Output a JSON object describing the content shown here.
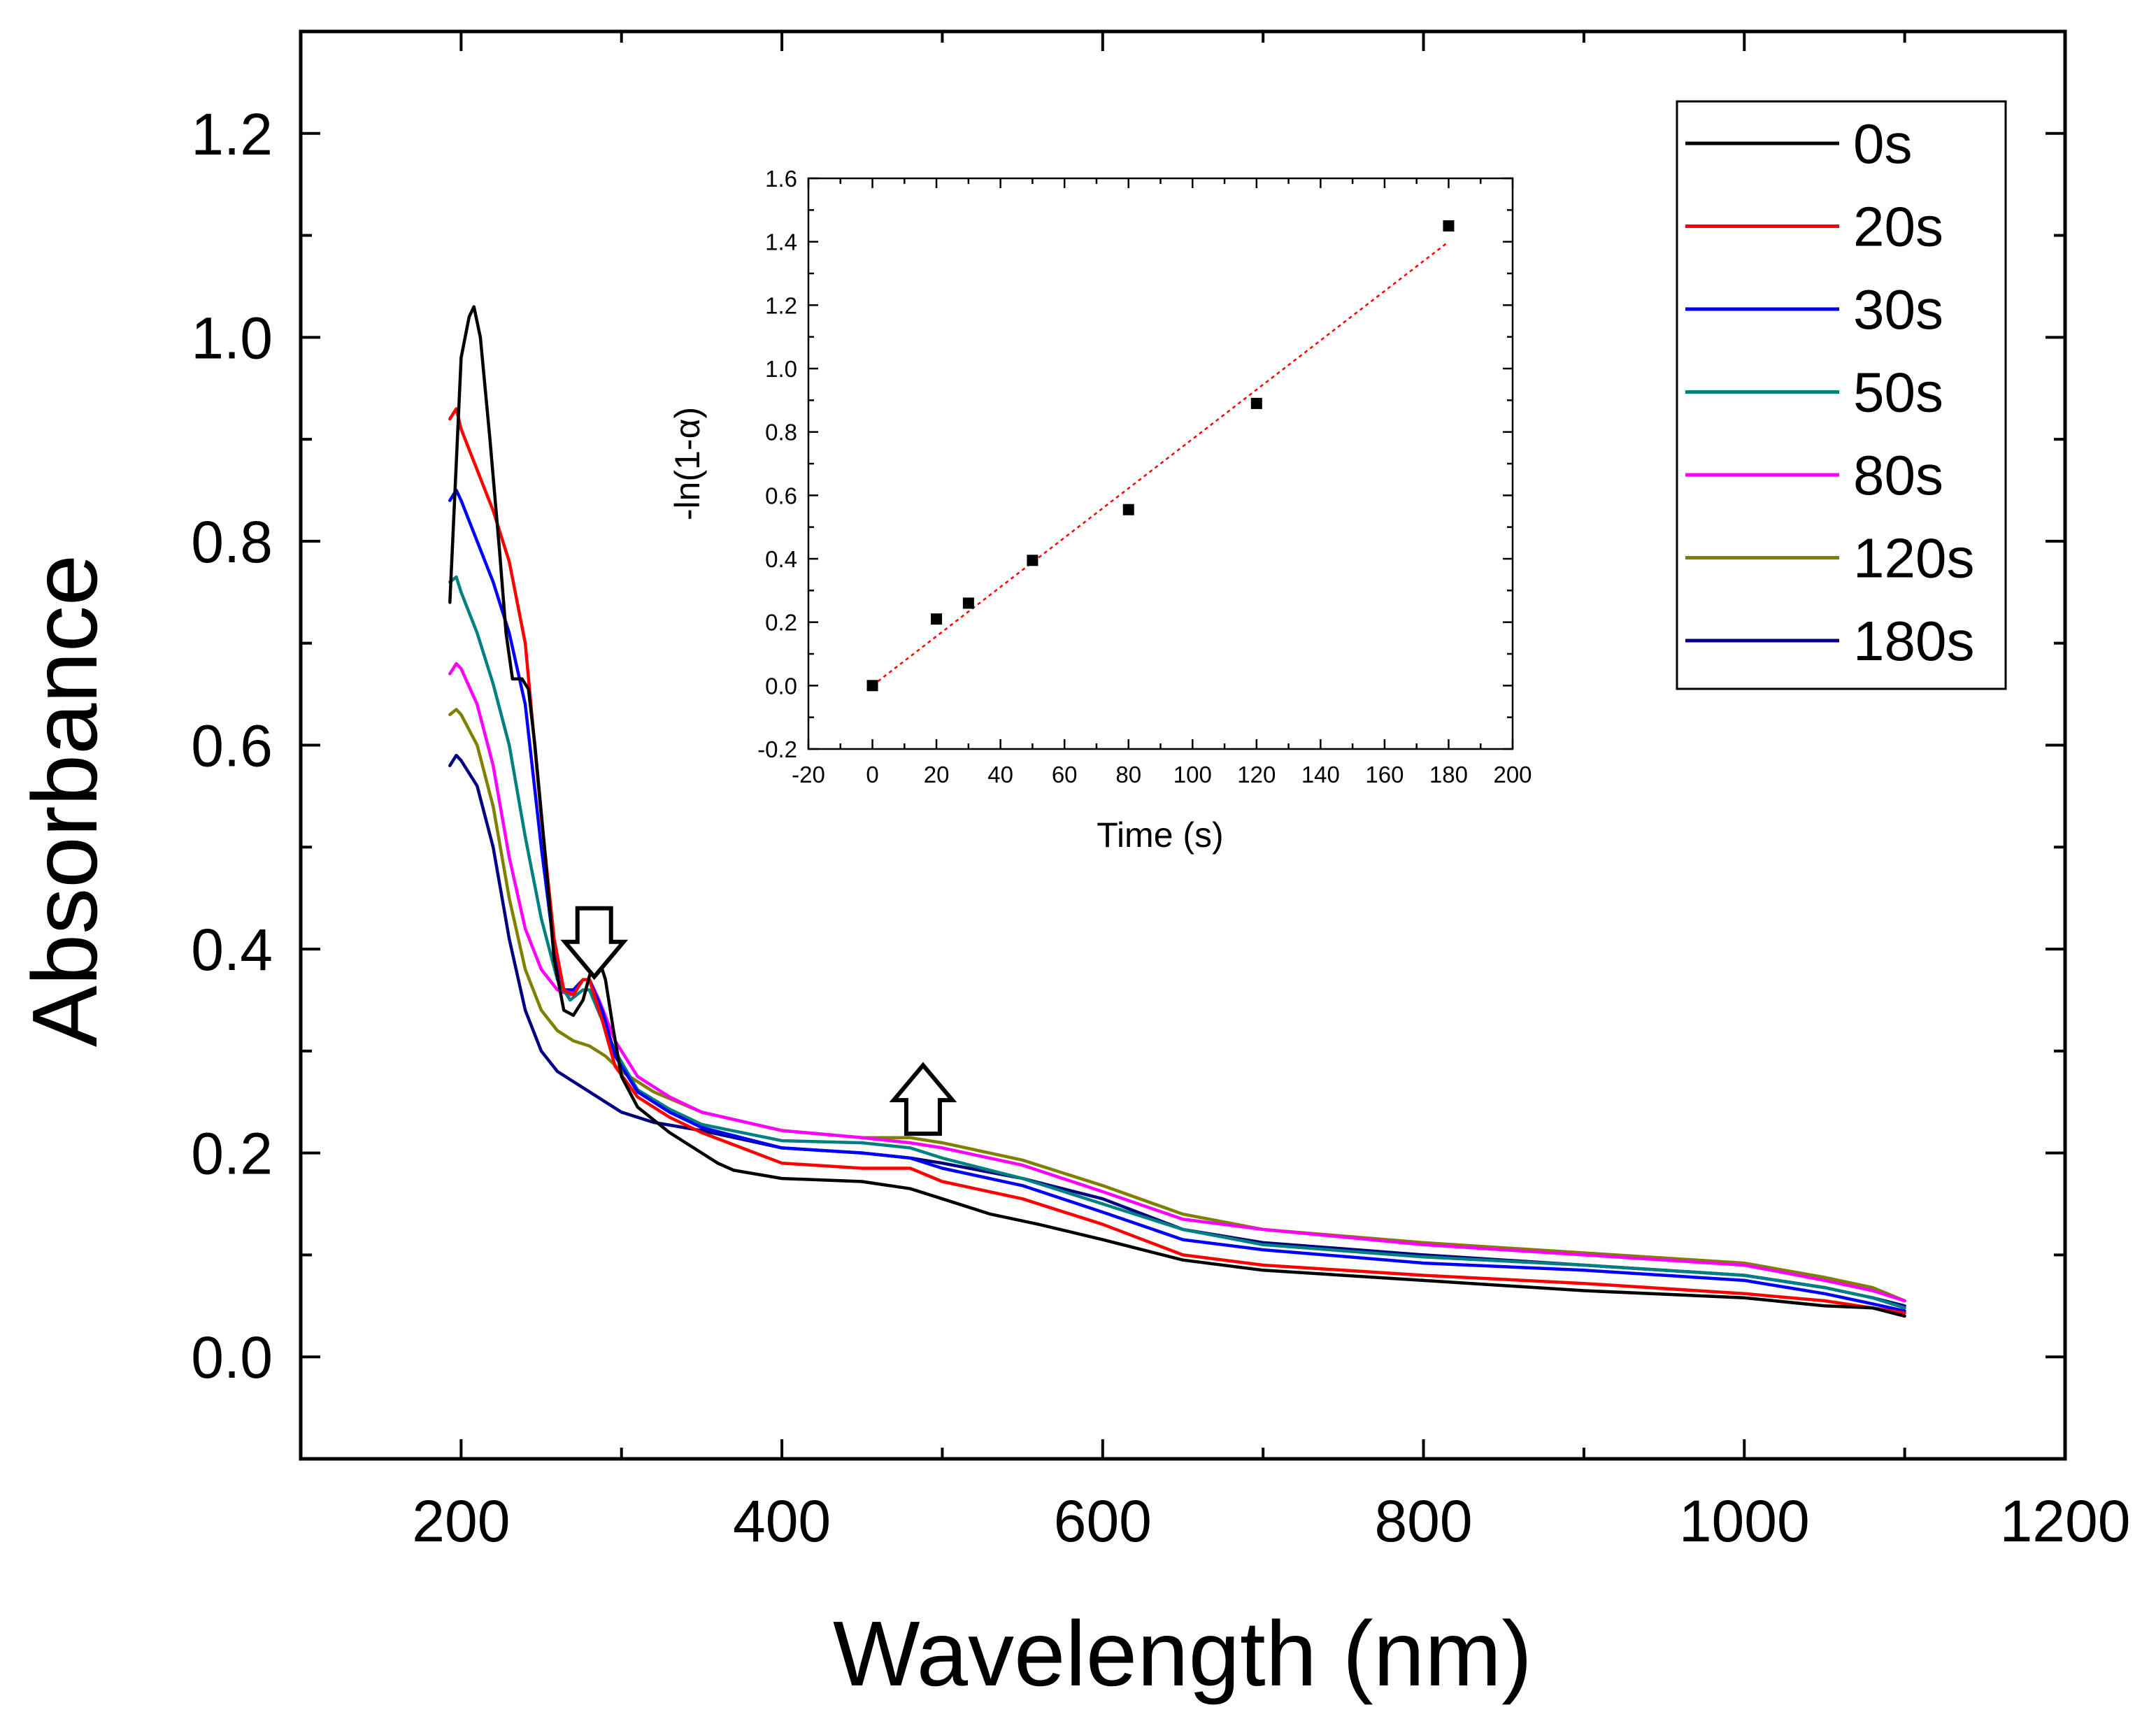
{
  "chart_data": [
    {
      "type": "line",
      "title": "",
      "xlabel": "Wavelength (nm)",
      "ylabel": "Absorbance",
      "xlim": [
        100,
        1200
      ],
      "ylim": [
        -0.1,
        1.3
      ],
      "x_ticks": [
        "200",
        "400",
        "600",
        "800",
        "1000",
        "1200"
      ],
      "y_ticks": [
        "0.0",
        "0.2",
        "0.4",
        "0.6",
        "0.8",
        "1.0",
        "1.2"
      ],
      "legend_position": "top-right",
      "annotations": [
        {
          "kind": "down-arrow",
          "label": "decrease",
          "x": 283,
          "y": 0.44
        },
        {
          "kind": "up-arrow",
          "label": "increase",
          "x": 488,
          "y": 0.26
        }
      ],
      "series": [
        {
          "name": "0s",
          "color": "#000000",
          "points": [
            [
              193,
              0.74
            ],
            [
              200,
              0.98
            ],
            [
              205,
              1.02
            ],
            [
              208,
              1.03
            ],
            [
              212,
              1.0
            ],
            [
              218,
              0.9
            ],
            [
              224,
              0.79
            ],
            [
              228,
              0.71
            ],
            [
              232,
              0.665
            ],
            [
              238,
              0.665
            ],
            [
              242,
              0.655
            ],
            [
              246,
              0.6
            ],
            [
              252,
              0.5
            ],
            [
              258,
              0.39
            ],
            [
              264,
              0.34
            ],
            [
              270,
              0.335
            ],
            [
              276,
              0.35
            ],
            [
              282,
              0.385
            ],
            [
              286,
              0.39
            ],
            [
              290,
              0.37
            ],
            [
              295,
              0.32
            ],
            [
              300,
              0.275
            ],
            [
              310,
              0.245
            ],
            [
              330,
              0.22
            ],
            [
              350,
              0.2
            ],
            [
              360,
              0.19
            ],
            [
              370,
              0.183
            ],
            [
              400,
              0.175
            ],
            [
              450,
              0.172
            ],
            [
              480,
              0.165
            ],
            [
              500,
              0.155
            ],
            [
              530,
              0.14
            ],
            [
              560,
              0.13
            ],
            [
              600,
              0.115
            ],
            [
              650,
              0.095
            ],
            [
              700,
              0.085
            ],
            [
              800,
              0.075
            ],
            [
              900,
              0.065
            ],
            [
              1000,
              0.058
            ],
            [
              1050,
              0.05
            ],
            [
              1080,
              0.048
            ],
            [
              1100,
              0.04
            ]
          ]
        },
        {
          "name": "20s",
          "color": "#ff0000",
          "points": [
            [
              193,
              0.92
            ],
            [
              197,
              0.93
            ],
            [
              200,
              0.91
            ],
            [
              210,
              0.87
            ],
            [
              220,
              0.83
            ],
            [
              230,
              0.78
            ],
            [
              240,
              0.7
            ],
            [
              250,
              0.53
            ],
            [
              258,
              0.41
            ],
            [
              264,
              0.36
            ],
            [
              270,
              0.355
            ],
            [
              276,
              0.37
            ],
            [
              280,
              0.37
            ],
            [
              288,
              0.33
            ],
            [
              296,
              0.285
            ],
            [
              310,
              0.255
            ],
            [
              330,
              0.235
            ],
            [
              350,
              0.22
            ],
            [
              400,
              0.19
            ],
            [
              450,
              0.185
            ],
            [
              480,
              0.185
            ],
            [
              500,
              0.172
            ],
            [
              550,
              0.155
            ],
            [
              600,
              0.13
            ],
            [
              650,
              0.1
            ],
            [
              700,
              0.09
            ],
            [
              800,
              0.08
            ],
            [
              900,
              0.072
            ],
            [
              1000,
              0.062
            ],
            [
              1050,
              0.055
            ],
            [
              1080,
              0.048
            ],
            [
              1100,
              0.043
            ]
          ]
        },
        {
          "name": "30s",
          "color": "#0000ff",
          "points": [
            [
              193,
              0.84
            ],
            [
              197,
              0.85
            ],
            [
              200,
              0.84
            ],
            [
              210,
              0.8
            ],
            [
              220,
              0.76
            ],
            [
              230,
              0.71
            ],
            [
              240,
              0.64
            ],
            [
              250,
              0.5
            ],
            [
              258,
              0.4
            ],
            [
              264,
              0.36
            ],
            [
              270,
              0.36
            ],
            [
              276,
              0.37
            ],
            [
              280,
              0.37
            ],
            [
              288,
              0.34
            ],
            [
              296,
              0.295
            ],
            [
              310,
              0.26
            ],
            [
              330,
              0.24
            ],
            [
              350,
              0.225
            ],
            [
              400,
              0.205
            ],
            [
              450,
              0.2
            ],
            [
              480,
              0.195
            ],
            [
              500,
              0.185
            ],
            [
              550,
              0.168
            ],
            [
              600,
              0.142
            ],
            [
              650,
              0.115
            ],
            [
              700,
              0.105
            ],
            [
              800,
              0.092
            ],
            [
              900,
              0.085
            ],
            [
              1000,
              0.075
            ],
            [
              1050,
              0.062
            ],
            [
              1080,
              0.052
            ],
            [
              1100,
              0.045
            ]
          ]
        },
        {
          "name": "50s",
          "color": "#008080",
          "points": [
            [
              193,
              0.76
            ],
            [
              197,
              0.765
            ],
            [
              200,
              0.75
            ],
            [
              210,
              0.71
            ],
            [
              220,
              0.66
            ],
            [
              230,
              0.6
            ],
            [
              240,
              0.51
            ],
            [
              250,
              0.43
            ],
            [
              260,
              0.37
            ],
            [
              268,
              0.35
            ],
            [
              276,
              0.36
            ],
            [
              280,
              0.36
            ],
            [
              288,
              0.33
            ],
            [
              296,
              0.3
            ],
            [
              310,
              0.262
            ],
            [
              330,
              0.243
            ],
            [
              350,
              0.228
            ],
            [
              400,
              0.212
            ],
            [
              450,
              0.21
            ],
            [
              480,
              0.205
            ],
            [
              500,
              0.195
            ],
            [
              550,
              0.175
            ],
            [
              600,
              0.15
            ],
            [
              650,
              0.125
            ],
            [
              700,
              0.11
            ],
            [
              800,
              0.098
            ],
            [
              900,
              0.09
            ],
            [
              1000,
              0.08
            ],
            [
              1050,
              0.068
            ],
            [
              1080,
              0.058
            ],
            [
              1100,
              0.048
            ]
          ]
        },
        {
          "name": "80s",
          "color": "#ff00ff",
          "points": [
            [
              193,
              0.67
            ],
            [
              197,
              0.68
            ],
            [
              200,
              0.675
            ],
            [
              210,
              0.64
            ],
            [
              220,
              0.58
            ],
            [
              230,
              0.49
            ],
            [
              240,
              0.42
            ],
            [
              250,
              0.38
            ],
            [
              260,
              0.36
            ],
            [
              268,
              0.355
            ],
            [
              276,
              0.37
            ],
            [
              280,
              0.37
            ],
            [
              286,
              0.35
            ],
            [
              296,
              0.31
            ],
            [
              310,
              0.275
            ],
            [
              330,
              0.255
            ],
            [
              350,
              0.24
            ],
            [
              400,
              0.222
            ],
            [
              450,
              0.215
            ],
            [
              480,
              0.21
            ],
            [
              500,
              0.205
            ],
            [
              550,
              0.188
            ],
            [
              600,
              0.162
            ],
            [
              650,
              0.135
            ],
            [
              700,
              0.125
            ],
            [
              800,
              0.11
            ],
            [
              900,
              0.1
            ],
            [
              1000,
              0.09
            ],
            [
              1050,
              0.075
            ],
            [
              1080,
              0.065
            ],
            [
              1100,
              0.055
            ]
          ]
        },
        {
          "name": "120s",
          "color": "#808000",
          "points": [
            [
              193,
              0.63
            ],
            [
              197,
              0.635
            ],
            [
              200,
              0.63
            ],
            [
              210,
              0.6
            ],
            [
              220,
              0.54
            ],
            [
              230,
              0.45
            ],
            [
              240,
              0.38
            ],
            [
              250,
              0.34
            ],
            [
              260,
              0.32
            ],
            [
              270,
              0.31
            ],
            [
              280,
              0.305
            ],
            [
              290,
              0.295
            ],
            [
              300,
              0.28
            ],
            [
              320,
              0.26
            ],
            [
              350,
              0.24
            ],
            [
              400,
              0.222
            ],
            [
              450,
              0.215
            ],
            [
              480,
              0.215
            ],
            [
              500,
              0.21
            ],
            [
              550,
              0.193
            ],
            [
              600,
              0.168
            ],
            [
              650,
              0.14
            ],
            [
              700,
              0.125
            ],
            [
              800,
              0.112
            ],
            [
              900,
              0.102
            ],
            [
              1000,
              0.092
            ],
            [
              1050,
              0.078
            ],
            [
              1080,
              0.068
            ],
            [
              1100,
              0.055
            ]
          ]
        },
        {
          "name": "180s",
          "color": "#000080",
          "points": [
            [
              193,
              0.58
            ],
            [
              197,
              0.59
            ],
            [
              200,
              0.585
            ],
            [
              210,
              0.56
            ],
            [
              220,
              0.5
            ],
            [
              230,
              0.41
            ],
            [
              240,
              0.34
            ],
            [
              250,
              0.3
            ],
            [
              260,
              0.28
            ],
            [
              270,
              0.27
            ],
            [
              280,
              0.26
            ],
            [
              290,
              0.25
            ],
            [
              300,
              0.24
            ],
            [
              320,
              0.23
            ],
            [
              350,
              0.222
            ],
            [
              400,
              0.205
            ],
            [
              450,
              0.2
            ],
            [
              480,
              0.195
            ],
            [
              500,
              0.19
            ],
            [
              550,
              0.175
            ],
            [
              600,
              0.155
            ],
            [
              650,
              0.125
            ],
            [
              700,
              0.112
            ],
            [
              800,
              0.1
            ],
            [
              900,
              0.09
            ],
            [
              1000,
              0.08
            ],
            [
              1050,
              0.068
            ],
            [
              1080,
              0.058
            ],
            [
              1100,
              0.05
            ]
          ]
        }
      ]
    },
    {
      "type": "scatter",
      "title": "",
      "xlabel": "Time (s)",
      "ylabel": "-ln(1-α)",
      "xlim": [
        -20,
        200
      ],
      "ylim": [
        -0.2,
        1.6
      ],
      "x_ticks": [
        "-20",
        "0",
        "20",
        "40",
        "60",
        "80",
        "100",
        "120",
        "140",
        "160",
        "180",
        "200"
      ],
      "y_ticks": [
        "-0.2",
        "0.0",
        "0.2",
        "0.4",
        "0.6",
        "0.8",
        "1.0",
        "1.2",
        "1.4",
        "1.6"
      ],
      "points": [
        [
          0,
          0.0
        ],
        [
          20,
          0.21
        ],
        [
          30,
          0.26
        ],
        [
          50,
          0.395
        ],
        [
          80,
          0.555
        ],
        [
          120,
          0.89
        ],
        [
          180,
          1.45
        ]
      ],
      "fit": {
        "type": "linear",
        "from": [
          0,
          0.0
        ],
        "to": [
          180,
          1.4
        ],
        "color": "#ff0000"
      }
    }
  ]
}
